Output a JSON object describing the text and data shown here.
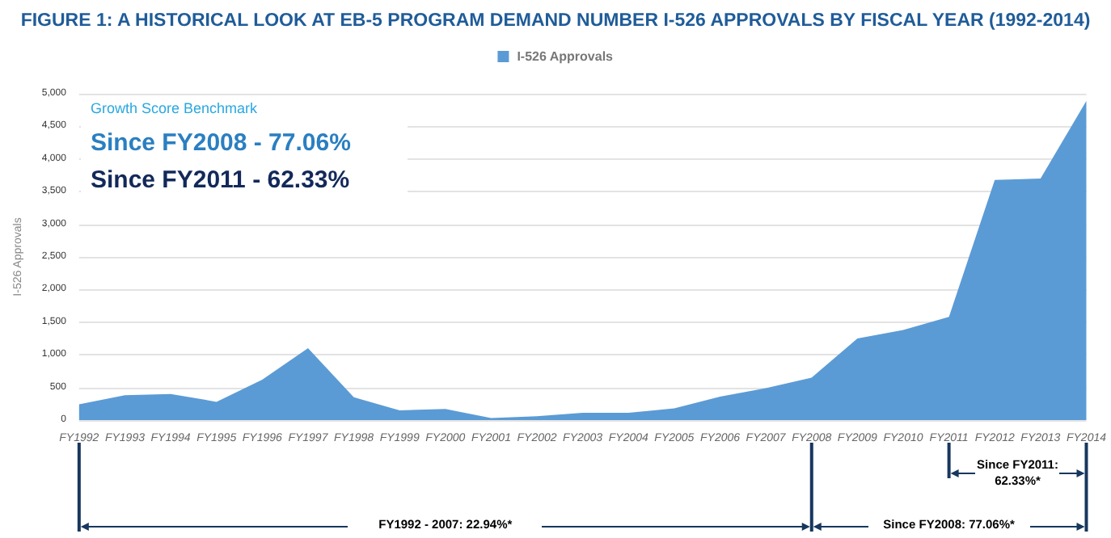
{
  "chart_data": {
    "type": "area",
    "title": "FIGURE 1: A HISTORICAL LOOK AT EB-5 PROGRAM DEMAND NUMBER I-526 APPROVALS BY FISCAL YEAR (1992-2014)",
    "ylabel": "I-526 Approvals",
    "categories": [
      "FY1992",
      "FY1993",
      "FY1994",
      "FY1995",
      "FY1996",
      "FY1997",
      "FY1998",
      "FY1999",
      "FY2000",
      "FY2001",
      "FY2002",
      "FY2003",
      "FY2004",
      "FY2005",
      "FY2006",
      "FY2007",
      "FY2008",
      "FY2009",
      "FY2010",
      "FY2011",
      "FY2012",
      "FY2013",
      "FY2014"
    ],
    "series": [
      {
        "name": "I-526 Approvals",
        "color": "#5b9bd5",
        "values": [
          240,
          380,
          400,
          280,
          620,
          1100,
          350,
          150,
          170,
          30,
          60,
          110,
          110,
          180,
          360,
          490,
          650,
          1250,
          1380,
          1580,
          3680,
          3700,
          4890
        ]
      }
    ],
    "ylim": [
      0,
      5000
    ],
    "yticks": [
      {
        "value": 0,
        "label": "0"
      },
      {
        "value": 500,
        "label": "500"
      },
      {
        "value": 1000,
        "label": "1,000"
      },
      {
        "value": 1500,
        "label": "1,500"
      },
      {
        "value": 2000,
        "label": "2,000"
      },
      {
        "value": 2500,
        "label": "2,500"
      },
      {
        "value": 3000,
        "label": "3,000"
      },
      {
        "value": 3500,
        "label": "3,500"
      },
      {
        "value": 4000,
        "label": "4,000"
      },
      {
        "value": 4500,
        "label": "4,500"
      },
      {
        "value": 5000,
        "label": "5,000"
      }
    ],
    "grid": "y",
    "legend": "top",
    "annotations": [
      "Growth Score Benchmark",
      "Since FY2008 - 77.06%",
      "Since FY2011 - 62.33%",
      "FY1992 - 2007: 22.94%*",
      "Since FY2008: 77.06%*",
      "Since FY2011: 62.33%*"
    ]
  }
}
